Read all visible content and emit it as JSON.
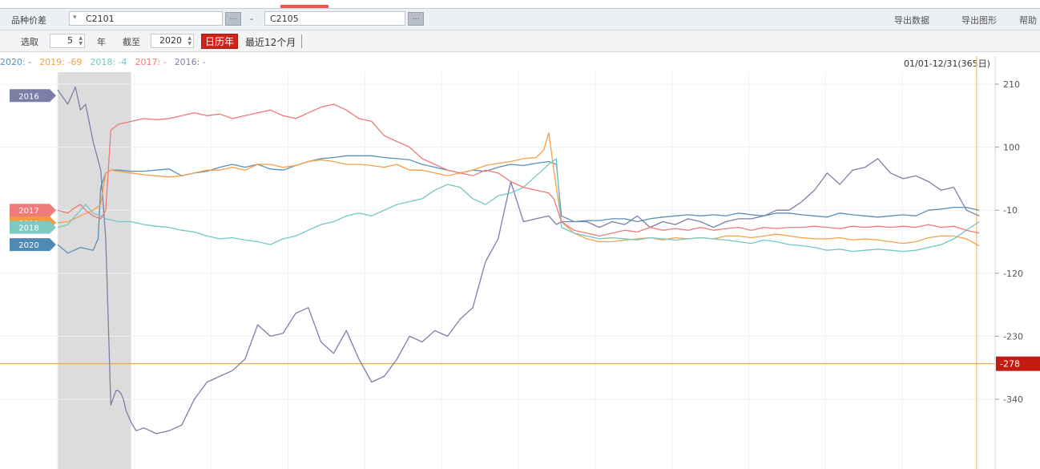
{
  "toolbar": {
    "variety_label": "品种价差",
    "contract_a": "C2101",
    "dash": "-",
    "contract_b": "C2105",
    "export_data": "导出数据",
    "export_image": "导出图形",
    "help": "帮助",
    "select_label": "选取",
    "years_value": "5",
    "year_unit": "年",
    "until_label": "截至",
    "until_year": "2020",
    "calendar_year": "日历年",
    "last12": "最近12个月"
  },
  "legend": {
    "entries": [
      {
        "label": "2020: -",
        "color": "#5b8fb5"
      },
      {
        "label": "2019: -69",
        "color": "#f5a048"
      },
      {
        "label": "2018: -4",
        "color": "#72c8c4"
      },
      {
        "label": "2017: -",
        "color": "#ee7a7a"
      },
      {
        "label": "2016: -",
        "color": "#7a7fa8"
      }
    ],
    "range": "01/01-12/31(365日)"
  },
  "chart_data": {
    "type": "line",
    "x_label_format": "day of year",
    "xlim": [
      1,
      365
    ],
    "ylim": [
      -390,
      230
    ],
    "y_ticks": [
      210,
      100,
      -10,
      -120,
      -230,
      -340
    ],
    "grid": true,
    "highlight_band": {
      "from": 1,
      "to": 30
    },
    "reference_line": {
      "value": -278,
      "label": "-278"
    },
    "cursor_day": 364,
    "year_tags": [
      {
        "label": "2016",
        "value": 190,
        "color": "#7b7fa6"
      },
      {
        "label": "2017",
        "value": -10,
        "color": "#f07b7b"
      },
      {
        "label": "2019",
        "value": -32,
        "color": "#f29a3c"
      },
      {
        "label": "2018",
        "value": -40,
        "color": "#7fc9c3"
      },
      {
        "label": "2020",
        "value": -70,
        "color": "#4f8ab4"
      }
    ],
    "series": [
      {
        "name": "2016",
        "color": "#7a7fa8",
        "x": [
          1,
          5,
          8,
          10,
          12,
          15,
          18,
          20,
          22,
          24,
          25,
          26,
          27,
          28,
          30,
          32,
          35,
          40,
          45,
          50,
          55,
          60,
          65,
          70,
          75,
          80,
          85,
          90,
          95,
          100,
          105,
          110,
          115,
          120,
          125,
          130,
          135,
          140,
          145,
          150,
          155,
          160,
          165,
          170,
          175,
          180,
          185,
          190,
          195,
          198,
          200,
          202,
          205,
          210,
          215,
          220,
          225,
          230,
          235,
          240,
          245,
          250,
          255,
          260,
          265,
          270,
          275,
          280,
          285,
          290,
          295,
          300,
          305,
          310,
          315,
          320,
          325,
          330,
          335,
          340,
          345,
          350,
          355,
          360,
          365
        ],
        "y": [
          200,
          175,
          205,
          165,
          175,
          110,
          60,
          -60,
          -350,
          -325,
          -325,
          -330,
          -340,
          -360,
          -380,
          -395,
          -390,
          -400,
          -395,
          -385,
          -340,
          -310,
          -300,
          -290,
          -270,
          -210,
          -230,
          -225,
          -190,
          -180,
          -240,
          -260,
          -220,
          -270,
          -310,
          -300,
          -270,
          -230,
          -240,
          -220,
          -230,
          -200,
          -180,
          -100,
          -60,
          40,
          -30,
          -25,
          -20,
          -35,
          -30,
          -30,
          -30,
          -30,
          -40,
          -30,
          -35,
          -20,
          -40,
          -30,
          -35,
          -25,
          -30,
          -40,
          -30,
          -25,
          -25,
          -20,
          -10,
          -10,
          5,
          25,
          55,
          35,
          60,
          65,
          80,
          55,
          45,
          50,
          40,
          25,
          30,
          -10,
          -20
        ]
      },
      {
        "name": "2020",
        "color": "#5b8fb5",
        "x": [
          1,
          5,
          10,
          15,
          17,
          18,
          20,
          22,
          25,
          30,
          35,
          40,
          45,
          50,
          55,
          60,
          65,
          70,
          75,
          80,
          85,
          90,
          95,
          100,
          105,
          110,
          115,
          120,
          125,
          130,
          135,
          140,
          145,
          150,
          155,
          160,
          165,
          170,
          175,
          180,
          185,
          190,
          195,
          198,
          200,
          205,
          210,
          215,
          220,
          225,
          230,
          235,
          240,
          245,
          250,
          255,
          260,
          265,
          270,
          275,
          280,
          285,
          290,
          295,
          300,
          305,
          310,
          315,
          320,
          325,
          330,
          335,
          340,
          345,
          350,
          355,
          360,
          365
        ],
        "y": [
          -70,
          -85,
          -75,
          -80,
          -60,
          30,
          55,
          60,
          60,
          58,
          58,
          60,
          62,
          50,
          55,
          58,
          65,
          70,
          65,
          70,
          62,
          60,
          68,
          75,
          80,
          82,
          85,
          85,
          85,
          82,
          80,
          78,
          70,
          65,
          60,
          55,
          60,
          58,
          65,
          70,
          68,
          72,
          75,
          70,
          -20,
          -30,
          -28,
          -28,
          -25,
          -25,
          -30,
          -25,
          -22,
          -20,
          -18,
          -20,
          -18,
          -20,
          -15,
          -18,
          -20,
          -15,
          -15,
          -18,
          -20,
          -22,
          -15,
          -18,
          -20,
          -22,
          -20,
          -18,
          -20,
          -10,
          -8,
          -5,
          -5,
          -10
        ]
      },
      {
        "name": "2019",
        "color": "#f5a048",
        "x": [
          1,
          5,
          10,
          15,
          18,
          20,
          22,
          25,
          30,
          35,
          40,
          45,
          50,
          55,
          60,
          65,
          70,
          75,
          80,
          85,
          90,
          95,
          100,
          105,
          110,
          115,
          120,
          125,
          130,
          135,
          140,
          145,
          150,
          155,
          160,
          165,
          170,
          175,
          180,
          185,
          190,
          193,
          195,
          197,
          200,
          205,
          210,
          215,
          220,
          225,
          230,
          235,
          240,
          245,
          250,
          255,
          260,
          265,
          270,
          275,
          280,
          285,
          290,
          295,
          300,
          305,
          310,
          315,
          320,
          325,
          330,
          335,
          340,
          345,
          350,
          355,
          360,
          365
        ],
        "y": [
          -32,
          -30,
          -20,
          -10,
          0,
          55,
          60,
          58,
          55,
          52,
          50,
          48,
          50,
          55,
          60,
          60,
          65,
          60,
          70,
          70,
          65,
          68,
          75,
          78,
          75,
          70,
          70,
          68,
          65,
          70,
          60,
          60,
          55,
          50,
          55,
          60,
          68,
          72,
          75,
          80,
          82,
          95,
          125,
          60,
          -30,
          -50,
          -60,
          -65,
          -65,
          -62,
          -60,
          -58,
          -62,
          -58,
          -60,
          -58,
          -60,
          -55,
          -55,
          -58,
          -55,
          -52,
          -55,
          -58,
          -60,
          -60,
          -58,
          -62,
          -60,
          -62,
          -65,
          -68,
          -65,
          -58,
          -55,
          -55,
          -60,
          -72
        ]
      },
      {
        "name": "2018",
        "color": "#72c8c4",
        "x": [
          1,
          5,
          8,
          10,
          12,
          15,
          18,
          20,
          25,
          30,
          35,
          40,
          45,
          50,
          55,
          60,
          65,
          70,
          75,
          80,
          85,
          90,
          95,
          100,
          105,
          110,
          115,
          120,
          125,
          130,
          135,
          140,
          145,
          150,
          155,
          160,
          165,
          170,
          175,
          180,
          185,
          190,
          195,
          198,
          200,
          205,
          210,
          215,
          220,
          225,
          230,
          235,
          240,
          245,
          250,
          255,
          260,
          265,
          270,
          275,
          280,
          285,
          290,
          295,
          300,
          305,
          310,
          315,
          320,
          325,
          330,
          335,
          340,
          345,
          350,
          355,
          360,
          365
        ],
        "y": [
          -40,
          -35,
          -20,
          -10,
          0,
          -15,
          -20,
          -25,
          -30,
          -30,
          -35,
          -38,
          -40,
          -45,
          -48,
          -55,
          -60,
          -58,
          -62,
          -65,
          -70,
          -60,
          -55,
          -45,
          -35,
          -30,
          -20,
          -15,
          -20,
          -10,
          0,
          5,
          10,
          25,
          35,
          30,
          10,
          0,
          15,
          20,
          30,
          50,
          70,
          80,
          -40,
          -50,
          -55,
          -60,
          -58,
          -60,
          -62,
          -58,
          -60,
          -62,
          -60,
          -58,
          -60,
          -62,
          -65,
          -68,
          -62,
          -65,
          -70,
          -72,
          -75,
          -80,
          -78,
          -82,
          -80,
          -78,
          -80,
          -82,
          -80,
          -75,
          -70,
          -60,
          -45,
          -30
        ]
      },
      {
        "name": "2017",
        "color": "#ee7a7a",
        "x": [
          1,
          5,
          8,
          10,
          12,
          15,
          18,
          20,
          22,
          25,
          30,
          35,
          40,
          45,
          50,
          55,
          60,
          65,
          70,
          75,
          80,
          85,
          90,
          95,
          100,
          105,
          110,
          115,
          120,
          125,
          130,
          135,
          140,
          145,
          150,
          155,
          160,
          165,
          170,
          175,
          180,
          185,
          190,
          195,
          197,
          200,
          205,
          210,
          215,
          220,
          225,
          230,
          235,
          240,
          245,
          250,
          255,
          260,
          265,
          270,
          275,
          280,
          285,
          290,
          295,
          300,
          305,
          310,
          315,
          320,
          325,
          330,
          335,
          340,
          345,
          350,
          355,
          360,
          365
        ],
        "y": [
          -10,
          -15,
          -5,
          0,
          -10,
          -20,
          -25,
          -10,
          130,
          140,
          145,
          150,
          148,
          150,
          155,
          160,
          155,
          158,
          150,
          155,
          160,
          165,
          155,
          150,
          160,
          170,
          175,
          165,
          150,
          145,
          120,
          110,
          100,
          80,
          70,
          60,
          55,
          50,
          60,
          55,
          40,
          30,
          25,
          20,
          10,
          -30,
          -45,
          -50,
          -55,
          -50,
          -45,
          -48,
          -40,
          -45,
          -42,
          -45,
          -40,
          -45,
          -42,
          -40,
          -45,
          -40,
          -42,
          -40,
          -40,
          -38,
          -40,
          -42,
          -38,
          -40,
          -38,
          -40,
          -38,
          -40,
          -35,
          -40,
          -38,
          -45,
          -50
        ]
      }
    ]
  }
}
